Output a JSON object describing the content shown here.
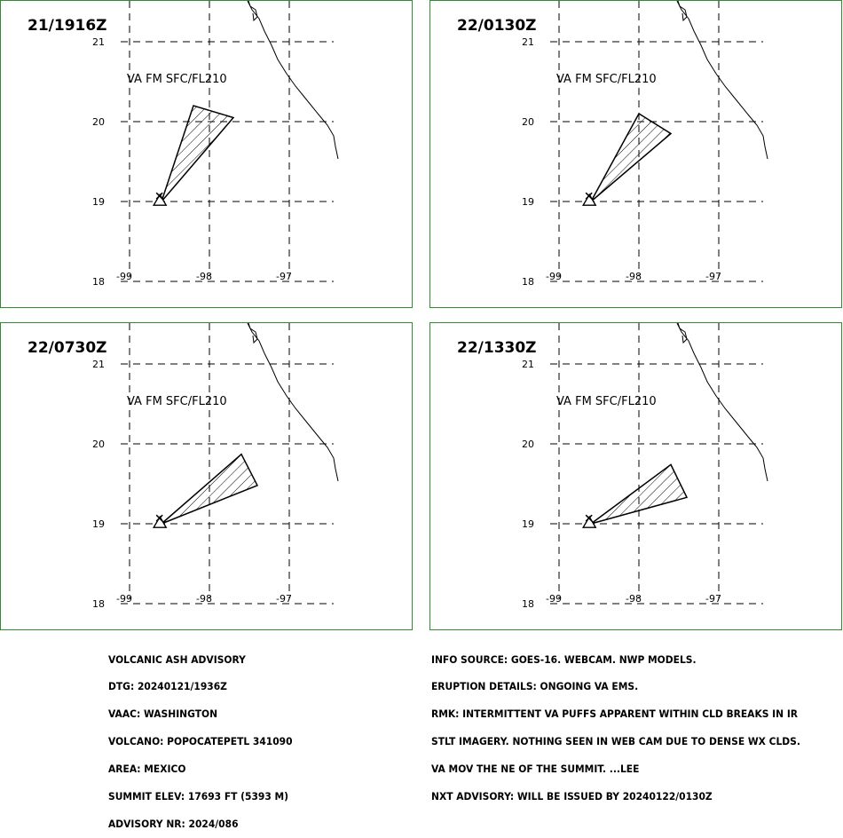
{
  "panels": [
    {
      "time": "21/1916Z",
      "label": "VA FM SFC/FL210",
      "polygon": [
        [
          -98.6,
          19.0
        ],
        [
          -98.2,
          20.2
        ],
        [
          -97.7,
          20.05
        ],
        [
          -98.6,
          19.0
        ]
      ]
    },
    {
      "time": "22/0130Z",
      "label": "VA FM SFC/FL210",
      "polygon": [
        [
          -98.6,
          19.0
        ],
        [
          -98.0,
          20.1
        ],
        [
          -97.6,
          19.85
        ],
        [
          -98.6,
          19.0
        ]
      ]
    },
    {
      "time": "22/0730Z",
      "label": "VA FM SFC/FL210",
      "polygon": [
        [
          -98.6,
          19.0
        ],
        [
          -97.6,
          19.87
        ],
        [
          -97.4,
          19.48
        ],
        [
          -98.6,
          19.0
        ]
      ]
    },
    {
      "time": "22/1330Z",
      "label": "VA FM SFC/FL210",
      "polygon": [
        [
          -98.6,
          19.0
        ],
        [
          -97.6,
          19.74
        ],
        [
          -97.4,
          19.33
        ],
        [
          -98.6,
          19.0
        ]
      ]
    }
  ],
  "map": {
    "lon_ticks": [
      "-99",
      "-98",
      "-97"
    ],
    "lat_ticks": [
      "21",
      "20",
      "19",
      "18"
    ],
    "volcano": {
      "lon": -98.62,
      "lat": 19.02,
      "marker": "triangle"
    },
    "vent_marker": "x",
    "grid": "dashed",
    "coastline_color": "#000000",
    "border_color": "#2e8b2e"
  },
  "advisory_left": [
    "VOLCANIC ASH ADVISORY",
    "DTG: 20240121/1936Z",
    "VAAC: WASHINGTON",
    "VOLCANO: POPOCATEPETL 341090",
    "AREA: MEXICO",
    "SUMMIT ELEV: 17693 FT (5393 M)",
    "ADVISORY NR: 2024/086"
  ],
  "advisory_right": [
    "INFO SOURCE: GOES-16. WEBCAM. NWP MODELS.",
    "ERUPTION DETAILS: ONGOING VA EMS.",
    "RMK: INTERMITTENT VA PUFFS APPARENT WITHIN CLD BREAKS IN IR",
    "STLT IMAGERY. NOTHING SEEN IN WEB CAM DUE TO DENSE WX CLDS.",
    "VA MOV THE NE OF THE SUMMIT. ...LEE",
    "NXT ADVISORY: WILL BE ISSUED BY 20240122/0130Z"
  ]
}
